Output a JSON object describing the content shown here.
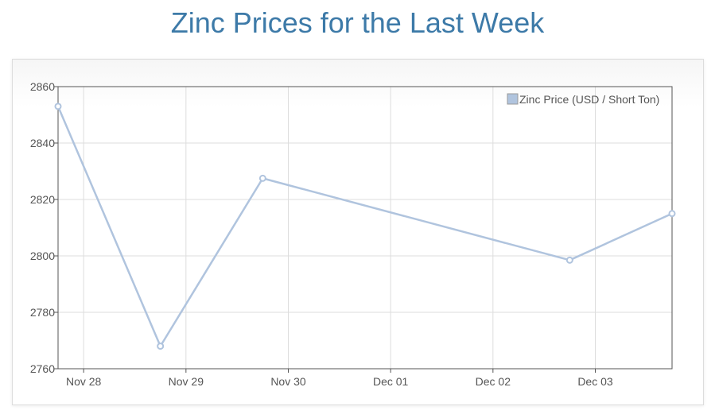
{
  "title": "Zinc Prices for the Last Week",
  "colors": {
    "title": "#3d7aa8",
    "series": "#b0c4de",
    "grid": "#dddddd",
    "axis": "#555555"
  },
  "chart_data": {
    "type": "line",
    "title": "Zinc Prices for the Last Week",
    "xlabel": "",
    "ylabel": "",
    "ylim": [
      2760,
      2860
    ],
    "xlim": [
      "2023-11-27 18:00",
      "2023-12-03 18:00"
    ],
    "y_ticks": [
      2760,
      2780,
      2800,
      2820,
      2840,
      2860
    ],
    "x_ticks": [
      "Nov 28",
      "Nov 29",
      "Nov 30",
      "Dec 01",
      "Dec 02",
      "Dec 03"
    ],
    "grid": true,
    "legend": {
      "position": "top-right"
    },
    "series": [
      {
        "name": "Zinc Price (USD / Short Ton)",
        "points": [
          {
            "x": "2023-11-27 18:00",
            "y": 2853
          },
          {
            "x": "2023-11-28 18:00",
            "y": 2768
          },
          {
            "x": "2023-11-29 18:00",
            "y": 2827.5
          },
          {
            "x": "2023-12-02 18:00",
            "y": 2798.5
          },
          {
            "x": "2023-12-03 18:00",
            "y": 2815
          }
        ]
      }
    ]
  }
}
